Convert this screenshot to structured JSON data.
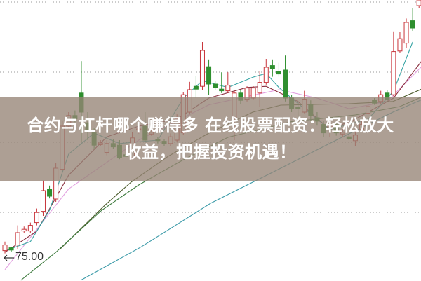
{
  "title_overlay": {
    "line1": "合约与杠杆哪个赚得多 在线股票配资：轻松放大",
    "line2": "收益，把握投资机遇！"
  },
  "chart_data": {
    "type": "candlestick",
    "title": "合约与杠杆哪个赚得多 在线股票配资：轻松放大收益，把握投资机遇！",
    "price_marker": "75.00",
    "grid": "horizontal dotted",
    "colors": {
      "up": "#c8343a",
      "down": "#2f8f2f",
      "ma_fast": "#3aa6a6",
      "ma_mid": "#8a2e3e",
      "ma_pink": "#e2a0e0",
      "ma_olive": "#4a5a2a",
      "ma_green": "#3d7a3d",
      "ma_teal": "#3a9aa8"
    },
    "candles_ohlc_order": "open, close, high, low",
    "candles": [
      [
        76.3,
        77.3,
        77.9,
        75.8
      ],
      [
        76.8,
        76.4,
        77.0,
        76.1
      ],
      [
        77.3,
        79.5,
        80.8,
        76.5
      ],
      [
        79.8,
        80.1,
        80.6,
        79.5
      ],
      [
        79.8,
        80.8,
        81.3,
        79.5
      ],
      [
        81.3,
        83.1,
        83.8,
        80.8
      ],
      [
        83.3,
        87.0,
        88.8,
        82.5
      ],
      [
        87.3,
        86.0,
        87.9,
        85.6
      ],
      [
        85.5,
        91.0,
        92.0,
        85.0
      ],
      [
        90.8,
        98.5,
        99.5,
        90.5
      ],
      [
        98.5,
        100.4,
        101.0,
        98.0
      ],
      [
        100.4,
        99.8,
        101.3,
        99.2
      ],
      [
        104.4,
        101.0,
        110.1,
        95.6
      ],
      [
        99.1,
        97.9,
        101.0,
        96.0
      ],
      [
        97.3,
        95.1,
        98.1,
        94.5
      ],
      [
        95.2,
        95.5,
        96.0,
        94.9
      ],
      [
        93.8,
        95.4,
        96.0,
        93.3
      ],
      [
        95.4,
        94.8,
        96.2,
        94.5
      ],
      [
        95.1,
        92.9,
        96.0,
        92.6
      ],
      [
        93.4,
        93.1,
        93.8,
        92.7
      ],
      [
        92.9,
        96.4,
        97.5,
        92.5
      ],
      [
        97.8,
        98.0,
        98.6,
        97.2
      ],
      [
        98.5,
        96.0,
        101.0,
        95.5
      ],
      [
        97.1,
        97.4,
        97.9,
        96.8
      ],
      [
        96.1,
        95.9,
        96.6,
        95.4
      ],
      [
        95.8,
        95.4,
        96.2,
        95.0
      ],
      [
        95.4,
        96.6,
        97.2,
        95.0
      ],
      [
        96.0,
        99.8,
        100.6,
        95.6
      ],
      [
        97.3,
        104.1,
        104.6,
        96.9
      ],
      [
        101.0,
        105.0,
        106.4,
        100.6
      ],
      [
        105.6,
        105.1,
        107.5,
        103.5
      ],
      [
        105.6,
        112.0,
        113.5,
        105.0
      ],
      [
        109.1,
        106.0,
        110.4,
        104.1
      ],
      [
        106.0,
        105.4,
        106.6,
        104.9
      ],
      [
        105.1,
        104.8,
        108.1,
        104.4
      ],
      [
        104.8,
        105.8,
        108.1,
        104.4
      ],
      [
        100.1,
        104.4,
        104.8,
        96.0
      ],
      [
        104.4,
        103.1,
        105.0,
        102.5
      ],
      [
        103.3,
        105.3,
        105.6,
        102.9
      ],
      [
        103.5,
        105.3,
        105.6,
        103.3
      ],
      [
        104.4,
        106.3,
        108.3,
        102.0
      ],
      [
        106.3,
        109.0,
        110.5,
        105.9
      ],
      [
        109.3,
        108.8,
        110.4,
        107.3
      ],
      [
        108.3,
        107.8,
        109.8,
        107.3
      ],
      [
        108.5,
        103.5,
        111.1,
        102.9
      ],
      [
        103.5,
        101.6,
        104.1,
        101.0
      ],
      [
        101.9,
        101.6,
        103.0,
        99.8
      ],
      [
        101.0,
        103.3,
        104.8,
        100.8
      ],
      [
        102.3,
        100.4,
        103.1,
        99.5
      ],
      [
        100.0,
        99.4,
        101.0,
        98.6
      ],
      [
        98.8,
        97.3,
        99.5,
        96.6
      ],
      [
        98.1,
        98.8,
        99.5,
        96.5
      ],
      [
        98.8,
        97.3,
        99.4,
        96.8
      ],
      [
        97.1,
        97.4,
        98.0,
        96.5
      ],
      [
        96.6,
        96.3,
        97.0,
        96.0
      ],
      [
        95.9,
        96.9,
        97.5,
        95.0
      ],
      [
        97.9,
        98.8,
        99.5,
        97.5
      ],
      [
        100.8,
        102.0,
        103.2,
        100.5
      ],
      [
        103.1,
        102.6,
        103.5,
        102.3
      ],
      [
        102.9,
        104.1,
        104.8,
        102.5
      ],
      [
        104.4,
        103.3,
        105.0,
        102.9
      ],
      [
        104.1,
        111.8,
        115.4,
        103.8
      ],
      [
        111.9,
        114.1,
        115.3,
        111.5
      ],
      [
        113.3,
        117.0,
        117.7,
        112.5
      ],
      [
        117.3,
        116.0,
        119.5,
        115.5
      ],
      [
        120.0,
        121.0,
        121.5,
        119.5
      ]
    ],
    "moving_averages": [
      {
        "color_key": "ma_pink",
        "points": [
          [
            0,
            72.9
          ],
          [
            10,
            87.3
          ],
          [
            21,
            96
          ],
          [
            32,
            102.3
          ],
          [
            43,
            105
          ],
          [
            49,
            103.5
          ],
          [
            54,
            101.6
          ],
          [
            60,
            102.9
          ],
          [
            66,
            109.8
          ]
        ]
      },
      {
        "color_key": "ma_mid",
        "points": [
          [
            0,
            76
          ],
          [
            5,
            79.75
          ],
          [
            10,
            89.75
          ],
          [
            16,
            96.6
          ],
          [
            21,
            98.5
          ],
          [
            27,
            99.75
          ],
          [
            32,
            103.5
          ],
          [
            38,
            105.4
          ],
          [
            41,
            105.6
          ],
          [
            46,
            102.9
          ],
          [
            51,
            97.9
          ],
          [
            55,
            99.75
          ],
          [
            61,
            103.5
          ],
          [
            66,
            111
          ]
        ]
      },
      {
        "color_key": "ma_fast",
        "points": [
          [
            0,
            76.25
          ],
          [
            4,
            77.9
          ],
          [
            7,
            83.5
          ],
          [
            10,
            93.5
          ],
          [
            14,
            97.25
          ],
          [
            18,
            95.4
          ],
          [
            24,
            96
          ],
          [
            28,
            103.5
          ],
          [
            31,
            106.6
          ],
          [
            35,
            105.4
          ],
          [
            39,
            107.25
          ],
          [
            41,
            107.9
          ],
          [
            43,
            105.4
          ],
          [
            47,
            101.6
          ],
          [
            51,
            97.9
          ],
          [
            57,
            99.75
          ],
          [
            61,
            104.75
          ],
          [
            64,
            113.5
          ]
        ]
      },
      {
        "color_key": "ma_olive",
        "points": [
          [
            8.6,
            76.5
          ],
          [
            15.7,
            84.4
          ],
          [
            19.8,
            88.5
          ],
          [
            25.6,
            93.1
          ],
          [
            32,
            97.25
          ],
          [
            38.9,
            101
          ],
          [
            43.3,
            102.25
          ],
          [
            54,
            102.5
          ],
          [
            60.9,
            102.9
          ],
          [
            66,
            105.4
          ]
        ]
      },
      {
        "color_key": "ma_green",
        "points": [
          [
            2.5,
            71
          ],
          [
            8,
            76
          ],
          [
            15.2,
            83.5
          ],
          [
            21,
            88
          ],
          [
            28,
            92.5
          ],
          [
            35,
            96.5
          ],
          [
            45,
            99.3
          ],
          [
            55,
            100.5
          ],
          [
            62,
            102
          ],
          [
            66,
            104
          ]
        ]
      },
      {
        "color_key": "ma_teal",
        "points": [
          [
            11.9,
            71
          ],
          [
            21.3,
            76.9
          ],
          [
            32.3,
            84.75
          ],
          [
            43.3,
            91
          ],
          [
            52,
            96
          ],
          [
            60.9,
            101
          ],
          [
            66,
            103.5
          ]
        ]
      }
    ]
  }
}
